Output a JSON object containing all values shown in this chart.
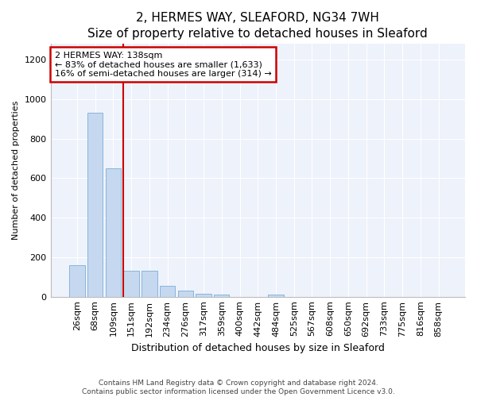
{
  "title": "2, HERMES WAY, SLEAFORD, NG34 7WH",
  "subtitle": "Size of property relative to detached houses in Sleaford",
  "xlabel": "Distribution of detached houses by size in Sleaford",
  "ylabel": "Number of detached properties",
  "categories": [
    "26sqm",
    "68sqm",
    "109sqm",
    "151sqm",
    "192sqm",
    "234sqm",
    "276sqm",
    "317sqm",
    "359sqm",
    "400sqm",
    "442sqm",
    "484sqm",
    "525sqm",
    "567sqm",
    "608sqm",
    "650sqm",
    "692sqm",
    "733sqm",
    "775sqm",
    "816sqm",
    "858sqm"
  ],
  "values": [
    160,
    930,
    650,
    130,
    130,
    55,
    30,
    15,
    10,
    0,
    0,
    12,
    0,
    0,
    0,
    0,
    0,
    0,
    0,
    0,
    0
  ],
  "bar_color": "#c5d8f0",
  "bar_edge_color": "#7aaed6",
  "vline_color": "#cc0000",
  "vline_position": 3.0,
  "annotation_text": "2 HERMES WAY: 138sqm\n← 83% of detached houses are smaller (1,633)\n16% of semi-detached houses are larger (314) →",
  "annotation_box_facecolor": "#ffffff",
  "annotation_box_edgecolor": "#cc0000",
  "ylim": [
    0,
    1280
  ],
  "yticks": [
    0,
    200,
    400,
    600,
    800,
    1000,
    1200
  ],
  "footer_line1": "Contains HM Land Registry data © Crown copyright and database right 2024.",
  "footer_line2": "Contains public sector information licensed under the Open Government Licence v3.0.",
  "bg_color": "#ffffff",
  "plot_bg_color": "#eef2fb",
  "title_fontsize": 11,
  "subtitle_fontsize": 10,
  "xlabel_fontsize": 9,
  "ylabel_fontsize": 8,
  "tick_fontsize": 8,
  "annot_fontsize": 8
}
